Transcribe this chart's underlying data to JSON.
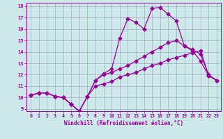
{
  "xlabel": "Windchill (Refroidissement éolien,°C)",
  "bg_color": "#cce8e8",
  "line_color": "#990099",
  "grid_color": "#aaaacc",
  "xlim": [
    -0.5,
    23.5
  ],
  "ylim": [
    8.8,
    18.3
  ],
  "xticks": [
    0,
    1,
    2,
    3,
    4,
    5,
    6,
    7,
    8,
    9,
    10,
    11,
    12,
    13,
    14,
    15,
    16,
    17,
    18,
    19,
    20,
    21,
    22,
    23
  ],
  "yticks": [
    9,
    10,
    11,
    12,
    13,
    14,
    15,
    16,
    17,
    18
  ],
  "line1_x": [
    0,
    1,
    2,
    3,
    4,
    5,
    6,
    7,
    8,
    9,
    10,
    11,
    12,
    13,
    14,
    15,
    16,
    17,
    18,
    19,
    20,
    21,
    22,
    23
  ],
  "line1_y": [
    10.2,
    10.4,
    10.4,
    10.1,
    10.0,
    9.4,
    8.8,
    10.1,
    11.0,
    11.2,
    11.4,
    11.8,
    12.0,
    12.2,
    12.5,
    12.8,
    13.0,
    13.3,
    13.5,
    13.7,
    13.9,
    14.1,
    11.9,
    11.5
  ],
  "line2_x": [
    0,
    1,
    2,
    3,
    4,
    5,
    6,
    7,
    8,
    9,
    10,
    11,
    12,
    13,
    14,
    15,
    16,
    17,
    18,
    19,
    20,
    21,
    22,
    23
  ],
  "line2_y": [
    10.2,
    10.4,
    10.4,
    10.1,
    10.0,
    9.4,
    8.8,
    10.1,
    11.5,
    12.0,
    12.2,
    12.5,
    12.8,
    13.2,
    13.6,
    14.0,
    14.4,
    14.8,
    15.0,
    14.5,
    14.2,
    13.8,
    12.0,
    11.5
  ],
  "line3_x": [
    0,
    1,
    2,
    3,
    4,
    5,
    6,
    7,
    8,
    9,
    10,
    11,
    12,
    13,
    14,
    15,
    16,
    17,
    18,
    19,
    20,
    21,
    22,
    23
  ],
  "line3_y": [
    10.2,
    10.4,
    10.4,
    10.1,
    10.0,
    9.4,
    8.8,
    10.1,
    11.5,
    12.1,
    12.5,
    15.2,
    16.9,
    16.6,
    16.0,
    17.8,
    17.9,
    17.3,
    16.7,
    14.5,
    14.1,
    13.2,
    11.9,
    11.5
  ],
  "marker": "D",
  "markersize": 2.5,
  "linewidth": 0.9
}
